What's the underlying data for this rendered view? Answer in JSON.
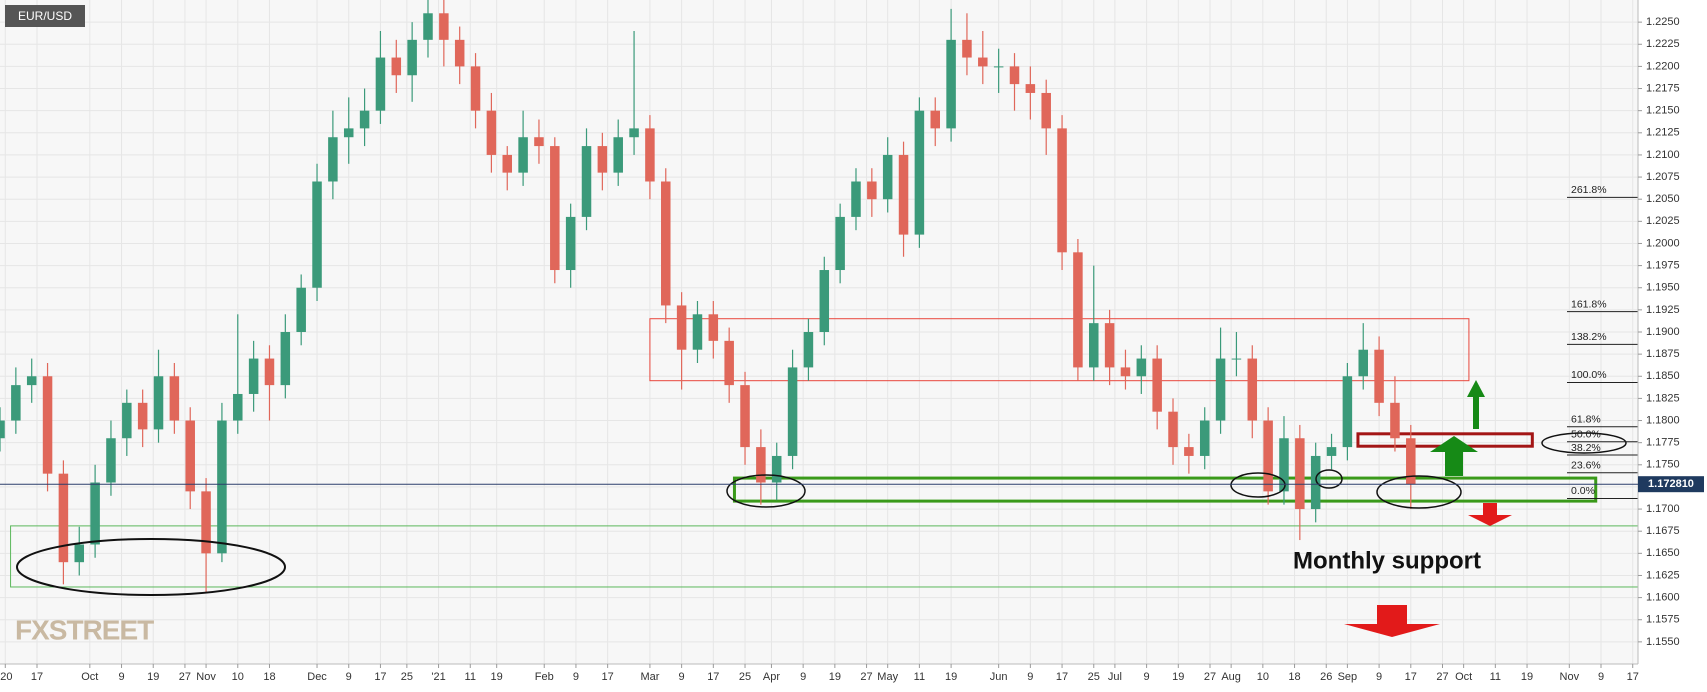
{
  "chart_data": {
    "type": "candlestick",
    "symbol": "EUR/USD",
    "logo": "FXSTREET",
    "annotation": "Monthly support",
    "up_color": "#3b9a7a",
    "down_color": "#e0675a",
    "grid": true,
    "ylim": [
      1.1525,
      1.2275
    ],
    "xlim": [
      0,
      310
    ],
    "yticks": [
      {
        "value": 1.155,
        "label": "1.1550"
      },
      {
        "value": 1.1575,
        "label": "1.1575"
      },
      {
        "value": 1.16,
        "label": "1.1600"
      },
      {
        "value": 1.1625,
        "label": "1.1625"
      },
      {
        "value": 1.165,
        "label": "1.1650"
      },
      {
        "value": 1.1675,
        "label": "1.1675"
      },
      {
        "value": 1.17,
        "label": "1.1700"
      },
      {
        "value": 1.1725,
        "label": "1.1725"
      },
      {
        "value": 1.175,
        "label": "1.1750"
      },
      {
        "value": 1.1775,
        "label": "1.1775"
      },
      {
        "value": 1.18,
        "label": "1.1800"
      },
      {
        "value": 1.1825,
        "label": "1.1825"
      },
      {
        "value": 1.185,
        "label": "1.1850"
      },
      {
        "value": 1.1875,
        "label": "1.1875"
      },
      {
        "value": 1.19,
        "label": "1.1900"
      },
      {
        "value": 1.1925,
        "label": "1.1925"
      },
      {
        "value": 1.195,
        "label": "1.1950"
      },
      {
        "value": 1.1975,
        "label": "1.1975"
      },
      {
        "value": 1.2,
        "label": "1.2000"
      },
      {
        "value": 1.2025,
        "label": "1.2025"
      },
      {
        "value": 1.205,
        "label": "1.2050"
      },
      {
        "value": 1.2075,
        "label": "1.2075"
      },
      {
        "value": 1.21,
        "label": "1.2100"
      },
      {
        "value": 1.2125,
        "label": "1.2125"
      },
      {
        "value": 1.215,
        "label": "1.2150"
      },
      {
        "value": 1.2175,
        "label": "1.2175"
      },
      {
        "value": 1.22,
        "label": "1.2200"
      },
      {
        "value": 1.2225,
        "label": "1.2225"
      },
      {
        "value": 1.225,
        "label": "1.2250"
      }
    ],
    "xticks": [
      {
        "value": 1,
        "label": "'20"
      },
      {
        "value": 7,
        "label": "17"
      },
      {
        "value": 17,
        "label": "Oct"
      },
      {
        "value": 23,
        "label": "9"
      },
      {
        "value": 29,
        "label": "19"
      },
      {
        "value": 35,
        "label": "27"
      },
      {
        "value": 39,
        "label": "Nov"
      },
      {
        "value": 45,
        "label": "10"
      },
      {
        "value": 51,
        "label": "18"
      },
      {
        "value": 60,
        "label": "Dec"
      },
      {
        "value": 66,
        "label": "9"
      },
      {
        "value": 72,
        "label": "17"
      },
      {
        "value": 77,
        "label": "25"
      },
      {
        "value": 83,
        "label": "'21"
      },
      {
        "value": 89,
        "label": "11"
      },
      {
        "value": 94,
        "label": "19"
      },
      {
        "value": 103,
        "label": "Feb"
      },
      {
        "value": 109,
        "label": "9"
      },
      {
        "value": 115,
        "label": "17"
      },
      {
        "value": 123,
        "label": "Mar"
      },
      {
        "value": 129,
        "label": "9"
      },
      {
        "value": 135,
        "label": "17"
      },
      {
        "value": 141,
        "label": "25"
      },
      {
        "value": 146,
        "label": "Apr"
      },
      {
        "value": 152,
        "label": "9"
      },
      {
        "value": 158,
        "label": "19"
      },
      {
        "value": 164,
        "label": "27"
      },
      {
        "value": 168,
        "label": "May"
      },
      {
        "value": 174,
        "label": "11"
      },
      {
        "value": 180,
        "label": "19"
      },
      {
        "value": 189,
        "label": "Jun"
      },
      {
        "value": 195,
        "label": "9"
      },
      {
        "value": 201,
        "label": "17"
      },
      {
        "value": 207,
        "label": "25"
      },
      {
        "value": 211,
        "label": "Jul"
      },
      {
        "value": 217,
        "label": "9"
      },
      {
        "value": 223,
        "label": "19"
      },
      {
        "value": 229,
        "label": "27"
      },
      {
        "value": 233,
        "label": "Aug"
      },
      {
        "value": 239,
        "label": "10"
      },
      {
        "value": 245,
        "label": "18"
      },
      {
        "value": 251,
        "label": "26"
      },
      {
        "value": 255,
        "label": "Sep"
      },
      {
        "value": 261,
        "label": "9"
      },
      {
        "value": 267,
        "label": "17"
      },
      {
        "value": 273,
        "label": "27"
      },
      {
        "value": 277,
        "label": "Oct"
      },
      {
        "value": 283,
        "label": "11"
      },
      {
        "value": 289,
        "label": "19"
      },
      {
        "value": 297,
        "label": "Nov"
      },
      {
        "value": 303,
        "label": "9"
      },
      {
        "value": 309,
        "label": "17"
      }
    ],
    "x": [
      0,
      3,
      6,
      9,
      12,
      15,
      18,
      21,
      24,
      27,
      30,
      33,
      36,
      39,
      42,
      45,
      48,
      51,
      54,
      57,
      60,
      63,
      66,
      69,
      72,
      75,
      78,
      81,
      84,
      87,
      90,
      93,
      96,
      99,
      102,
      105,
      108,
      111,
      114,
      117,
      120,
      123,
      126,
      129,
      132,
      135,
      138,
      141,
      144,
      147,
      150,
      153,
      156,
      159,
      162,
      165,
      168,
      171,
      174,
      177,
      180,
      183,
      186,
      189,
      192,
      195,
      198,
      201,
      204,
      207,
      210,
      213,
      216,
      219,
      222,
      225,
      228,
      231,
      234,
      237,
      240,
      243,
      246,
      249,
      252,
      255,
      258,
      261,
      264,
      267
    ],
    "ohlc": [
      [
        1.178,
        1.1815,
        1.1765,
        1.18
      ],
      [
        1.18,
        1.186,
        1.1785,
        1.184
      ],
      [
        1.184,
        1.187,
        1.182,
        1.185
      ],
      [
        1.185,
        1.1865,
        1.172,
        1.174
      ],
      [
        1.174,
        1.1755,
        1.1615,
        1.164
      ],
      [
        1.164,
        1.168,
        1.1625,
        1.166
      ],
      [
        1.166,
        1.175,
        1.1645,
        1.173
      ],
      [
        1.173,
        1.18,
        1.1715,
        1.178
      ],
      [
        1.178,
        1.1835,
        1.176,
        1.182
      ],
      [
        1.182,
        1.1835,
        1.177,
        1.179
      ],
      [
        1.179,
        1.188,
        1.1775,
        1.185
      ],
      [
        1.185,
        1.1865,
        1.1785,
        1.18
      ],
      [
        1.18,
        1.1815,
        1.17,
        1.172
      ],
      [
        1.172,
        1.1735,
        1.1605,
        1.165
      ],
      [
        1.165,
        1.182,
        1.164,
        1.18
      ],
      [
        1.18,
        1.192,
        1.1785,
        1.183
      ],
      [
        1.183,
        1.189,
        1.181,
        1.187
      ],
      [
        1.187,
        1.1885,
        1.18,
        1.184
      ],
      [
        1.184,
        1.192,
        1.1825,
        1.19
      ],
      [
        1.19,
        1.1965,
        1.1885,
        1.195
      ],
      [
        1.195,
        1.209,
        1.1935,
        1.207
      ],
      [
        1.207,
        1.215,
        1.205,
        1.212
      ],
      [
        1.212,
        1.2165,
        1.209,
        1.213
      ],
      [
        1.213,
        1.2175,
        1.211,
        1.215
      ],
      [
        1.215,
        1.224,
        1.2135,
        1.221
      ],
      [
        1.221,
        1.223,
        1.217,
        1.219
      ],
      [
        1.219,
        1.225,
        1.216,
        1.223
      ],
      [
        1.223,
        1.2275,
        1.221,
        1.226
      ],
      [
        1.226,
        1.2275,
        1.22,
        1.223
      ],
      [
        1.223,
        1.2245,
        1.218,
        1.22
      ],
      [
        1.22,
        1.2215,
        1.213,
        1.215
      ],
      [
        1.215,
        1.217,
        1.208,
        1.21
      ],
      [
        1.21,
        1.211,
        1.206,
        1.208
      ],
      [
        1.208,
        1.215,
        1.2065,
        1.212
      ],
      [
        1.212,
        1.214,
        1.209,
        1.211
      ],
      [
        1.211,
        1.212,
        1.1955,
        1.197
      ],
      [
        1.197,
        1.2045,
        1.195,
        1.203
      ],
      [
        1.203,
        1.213,
        1.2015,
        1.211
      ],
      [
        1.211,
        1.2125,
        1.206,
        1.208
      ],
      [
        1.208,
        1.214,
        1.2065,
        1.212
      ],
      [
        1.212,
        1.224,
        1.21,
        1.213
      ],
      [
        1.213,
        1.2145,
        1.205,
        1.207
      ],
      [
        1.207,
        1.2085,
        1.191,
        1.193
      ],
      [
        1.193,
        1.1945,
        1.1835,
        1.188
      ],
      [
        1.188,
        1.1935,
        1.1865,
        1.192
      ],
      [
        1.192,
        1.1935,
        1.187,
        1.189
      ],
      [
        1.189,
        1.1905,
        1.182,
        1.184
      ],
      [
        1.184,
        1.1855,
        1.175,
        1.177
      ],
      [
        1.177,
        1.179,
        1.1705,
        1.173
      ],
      [
        1.173,
        1.1775,
        1.171,
        1.176
      ],
      [
        1.176,
        1.188,
        1.1745,
        1.186
      ],
      [
        1.186,
        1.1915,
        1.1845,
        1.19
      ],
      [
        1.19,
        1.1985,
        1.1885,
        1.197
      ],
      [
        1.197,
        1.2045,
        1.1955,
        1.203
      ],
      [
        1.203,
        1.2085,
        1.2015,
        1.207
      ],
      [
        1.207,
        1.2085,
        1.203,
        1.205
      ],
      [
        1.205,
        1.212,
        1.2035,
        1.21
      ],
      [
        1.21,
        1.2115,
        1.1985,
        1.201
      ],
      [
        1.201,
        1.2165,
        1.1995,
        1.215
      ],
      [
        1.215,
        1.2165,
        1.211,
        1.213
      ],
      [
        1.213,
        1.2265,
        1.2115,
        1.223
      ],
      [
        1.223,
        1.226,
        1.219,
        1.221
      ],
      [
        1.221,
        1.224,
        1.218,
        1.22
      ],
      [
        1.22,
        1.222,
        1.217,
        1.22
      ],
      [
        1.22,
        1.2215,
        1.215,
        1.218
      ],
      [
        1.218,
        1.22,
        1.214,
        1.217
      ],
      [
        1.217,
        1.2185,
        1.21,
        1.213
      ],
      [
        1.213,
        1.2145,
        1.197,
        1.199
      ],
      [
        1.199,
        1.2005,
        1.1845,
        1.186
      ],
      [
        1.186,
        1.1975,
        1.1845,
        1.191
      ],
      [
        1.191,
        1.1925,
        1.184,
        1.186
      ],
      [
        1.186,
        1.188,
        1.1835,
        1.185
      ],
      [
        1.185,
        1.1885,
        1.183,
        1.187
      ],
      [
        1.187,
        1.1885,
        1.179,
        1.181
      ],
      [
        1.181,
        1.1825,
        1.175,
        1.177
      ],
      [
        1.177,
        1.1785,
        1.174,
        1.176
      ],
      [
        1.176,
        1.1815,
        1.1745,
        1.18
      ],
      [
        1.18,
        1.1905,
        1.1785,
        1.187
      ],
      [
        1.187,
        1.19,
        1.185,
        1.187
      ],
      [
        1.187,
        1.1885,
        1.178,
        1.18
      ],
      [
        1.18,
        1.1815,
        1.1705,
        1.172
      ],
      [
        1.172,
        1.1805,
        1.1705,
        1.178
      ],
      [
        1.178,
        1.1795,
        1.1665,
        1.17
      ],
      [
        1.17,
        1.1775,
        1.1685,
        1.176
      ],
      [
        1.176,
        1.1785,
        1.1745,
        1.177
      ],
      [
        1.177,
        1.1865,
        1.1755,
        1.185
      ],
      [
        1.185,
        1.191,
        1.1835,
        1.188
      ],
      [
        1.188,
        1.1895,
        1.1805,
        1.182
      ],
      [
        1.182,
        1.185,
        1.1765,
        1.178
      ],
      [
        1.178,
        1.1795,
        1.17,
        1.1728
      ]
    ],
    "last_price": {
      "value": 1.17281,
      "label": "1.172810"
    },
    "fib_levels": [
      {
        "value": 1.2052,
        "label": "261.8%"
      },
      {
        "value": 1.1923,
        "label": "161.8%"
      },
      {
        "value": 1.1886,
        "label": "138.2%"
      },
      {
        "value": 1.1843,
        "label": "100.0%"
      },
      {
        "value": 1.1793,
        "label": "61.8%"
      },
      {
        "value": 1.1776,
        "label": "50.0%"
      },
      {
        "value": 1.1761,
        "label": "38.2%"
      },
      {
        "value": 1.1741,
        "label": "23.6%"
      },
      {
        "value": 1.1712,
        "label": "0.0%"
      }
    ],
    "zones": [
      {
        "x": [
          123,
          278
        ],
        "y": [
          1.1845,
          1.1915
        ],
        "color": "#e8463c",
        "width": 1
      },
      {
        "x": [
          139,
          302
        ],
        "y": [
          1.1709,
          1.1735
        ],
        "color": "#3a9a1a",
        "width": 3
      },
      {
        "x": [
          2,
          310
        ],
        "y": [
          1.1612,
          1.1681
        ],
        "color": "#5cb85c",
        "width": 1
      },
      {
        "x": [
          257,
          290
        ],
        "y": [
          1.1771,
          1.1785
        ],
        "color": "#a31515",
        "width": 3
      }
    ]
  }
}
